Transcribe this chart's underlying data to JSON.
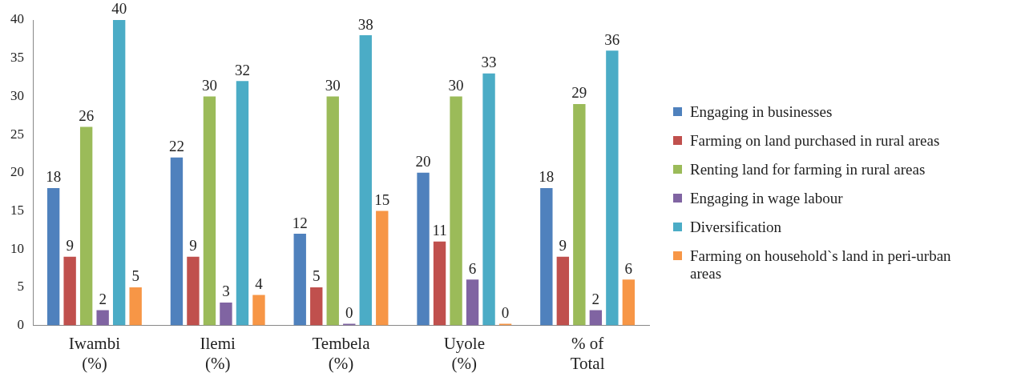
{
  "chart_data": {
    "type": "bar",
    "categories": [
      "Iwambi (%)",
      "Ilemi (%)",
      "Tembela (%)",
      "Uyole (%)",
      "% of Total"
    ],
    "series": [
      {
        "name": "Engaging in businesses",
        "color": "#4f81bd",
        "values": [
          18,
          22,
          12,
          20,
          18
        ]
      },
      {
        "name": "Farming on land purchased in rural areas",
        "color": "#c0504d",
        "values": [
          9,
          9,
          5,
          11,
          9
        ]
      },
      {
        "name": "Renting land for farming in rural areas",
        "color": "#9bbb59",
        "values": [
          26,
          30,
          30,
          30,
          29
        ]
      },
      {
        "name": "Engaging in wage labour",
        "color": "#8064a2",
        "values": [
          2,
          3,
          0,
          6,
          2
        ]
      },
      {
        "name": "Diversification",
        "color": "#4bacc6",
        "values": [
          40,
          32,
          38,
          33,
          36
        ]
      },
      {
        "name": "Farming on household`s land in peri-urban areas",
        "color": "#f79646",
        "values": [
          5,
          4,
          15,
          0,
          6
        ]
      }
    ],
    "ylim": [
      0,
      40
    ],
    "yticks": [
      0,
      5,
      10,
      15,
      20,
      25,
      30,
      35,
      40
    ],
    "data_labels": true,
    "grid": false,
    "legend": "right"
  }
}
